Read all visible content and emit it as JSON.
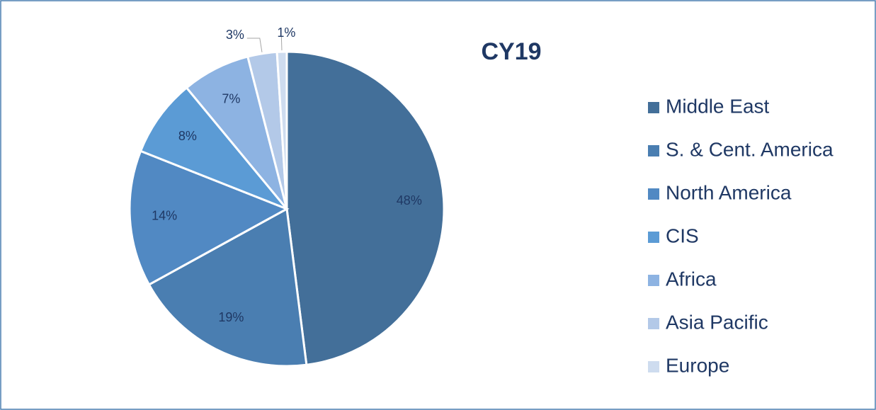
{
  "chart_data": {
    "type": "pie",
    "title": "CY19",
    "categories": [
      "Middle East",
      "S. & Cent. America",
      "North America",
      "CIS",
      "Africa",
      "Asia Pacific",
      "Europe"
    ],
    "values": [
      48,
      19,
      14,
      8,
      7,
      3,
      1
    ],
    "value_labels": [
      "48%",
      "19%",
      "14%",
      "8%",
      "7%",
      "3%",
      "1%"
    ],
    "colors": [
      "#436f99",
      "#4a7eb1",
      "#5189c3",
      "#5b9bd5",
      "#8db3e2",
      "#b3c9e8",
      "#cedcef"
    ],
    "legend": "right"
  }
}
